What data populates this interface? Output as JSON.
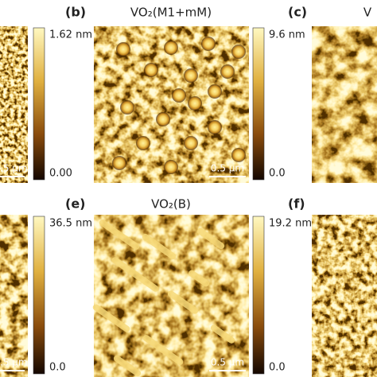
{
  "panels": [
    {
      "colorbar_max": "1.62 nm",
      "colorbar_min": "0.00",
      "scale_bar": ".5 µm"
    },
    {
      "label": "(b)",
      "title": "VO₂(M1+mM)",
      "colorbar_max": "9.6 nm",
      "colorbar_min": "0.0",
      "scale_bar": "0.5 µm"
    },
    {
      "label": "(c)",
      "title": "V"
    },
    {
      "colorbar_max": "36.5 nm",
      "colorbar_min": "0.0",
      "scale_bar": ".5 µm"
    },
    {
      "label": "(e)",
      "title": "VO₂(B)",
      "colorbar_max": "19.2 nm",
      "colorbar_min": "0.0",
      "scale_bar": "0.5 µm"
    },
    {
      "label": "(f)"
    }
  ]
}
